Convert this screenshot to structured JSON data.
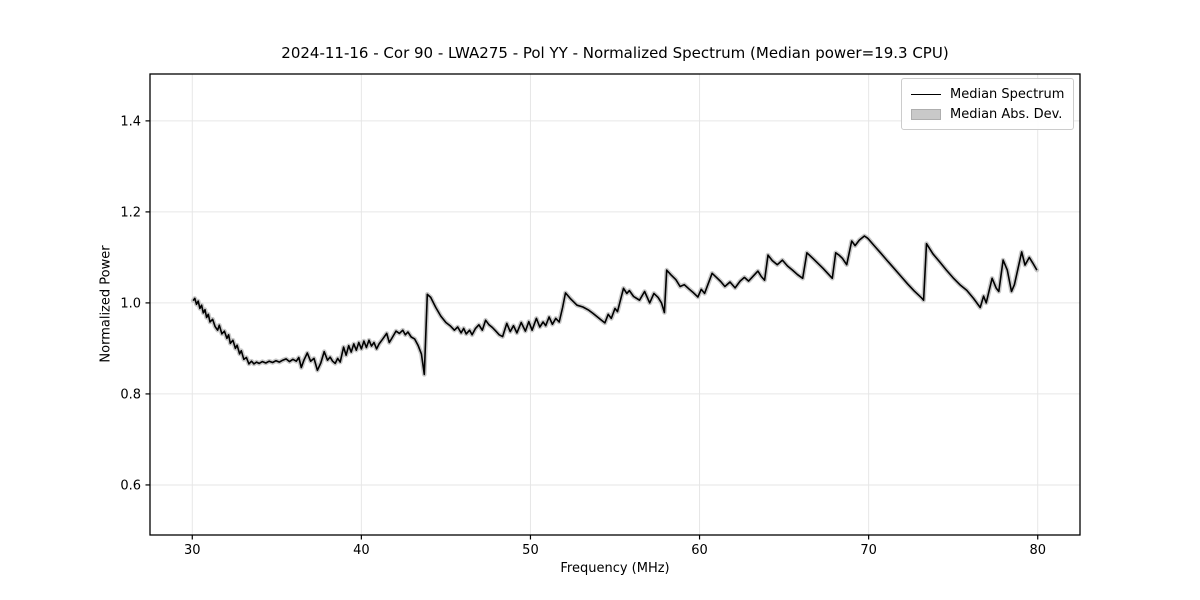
{
  "chart_data": {
    "type": "line",
    "title": "2024-11-16 - Cor 90 - LWA275 - Pol YY - Normalized Spectrum (Median power=19.3 CPU)",
    "xlabel": "Frequency (MHz)",
    "ylabel": "Normalized Power",
    "xlim": [
      27.5,
      82.5
    ],
    "ylim": [
      0.49,
      1.503
    ],
    "xticks": [
      30,
      40,
      50,
      60,
      70,
      80
    ],
    "xticklabels": [
      "30",
      "40",
      "50",
      "60",
      "70",
      "80"
    ],
    "yticks": [
      0.6,
      0.8,
      1.0,
      1.2,
      1.4
    ],
    "yticklabels": [
      "0.6",
      "0.8",
      "1.0",
      "1.2",
      "1.4"
    ],
    "grid": true,
    "legend": {
      "position": "upper right",
      "entries": [
        {
          "label": "Median Spectrum",
          "type": "line",
          "color": "#000000"
        },
        {
          "label": "Median Abs. Dev.",
          "type": "patch",
          "color": "#c9c9c9"
        }
      ]
    },
    "colors": {
      "line": "#000000",
      "band": "#c9c9c9",
      "grid": "#e6e6e6",
      "axes": "#000000",
      "background": "#ffffff"
    },
    "series": [
      {
        "name": "Median Spectrum",
        "type": "line",
        "color": "#000000",
        "points": [
          [
            30.05,
            1.005
          ],
          [
            30.15,
            1.01
          ],
          [
            30.25,
            0.997
          ],
          [
            30.35,
            1.004
          ],
          [
            30.45,
            0.988
          ],
          [
            30.55,
            0.995
          ],
          [
            30.65,
            0.978
          ],
          [
            30.75,
            0.985
          ],
          [
            30.85,
            0.968
          ],
          [
            30.95,
            0.975
          ],
          [
            31.05,
            0.958
          ],
          [
            31.2,
            0.964
          ],
          [
            31.35,
            0.948
          ],
          [
            31.5,
            0.94
          ],
          [
            31.6,
            0.951
          ],
          [
            31.75,
            0.932
          ],
          [
            31.9,
            0.938
          ],
          [
            32.05,
            0.922
          ],
          [
            32.15,
            0.93
          ],
          [
            32.25,
            0.911
          ],
          [
            32.4,
            0.918
          ],
          [
            32.55,
            0.9
          ],
          [
            32.65,
            0.907
          ],
          [
            32.8,
            0.888
          ],
          [
            32.9,
            0.895
          ],
          [
            33.05,
            0.876
          ],
          [
            33.2,
            0.88
          ],
          [
            33.35,
            0.866
          ],
          [
            33.5,
            0.872
          ],
          [
            33.65,
            0.866
          ],
          [
            33.8,
            0.87
          ],
          [
            33.95,
            0.867
          ],
          [
            34.15,
            0.871
          ],
          [
            34.35,
            0.868
          ],
          [
            34.55,
            0.872
          ],
          [
            34.75,
            0.869
          ],
          [
            34.95,
            0.873
          ],
          [
            35.15,
            0.87
          ],
          [
            35.35,
            0.874
          ],
          [
            35.55,
            0.877
          ],
          [
            35.75,
            0.871
          ],
          [
            35.95,
            0.876
          ],
          [
            36.15,
            0.872
          ],
          [
            36.3,
            0.88
          ],
          [
            36.45,
            0.858
          ],
          [
            36.6,
            0.874
          ],
          [
            36.8,
            0.89
          ],
          [
            37.0,
            0.872
          ],
          [
            37.2,
            0.878
          ],
          [
            37.4,
            0.852
          ],
          [
            37.6,
            0.868
          ],
          [
            37.8,
            0.893
          ],
          [
            38.0,
            0.874
          ],
          [
            38.15,
            0.881
          ],
          [
            38.3,
            0.872
          ],
          [
            38.45,
            0.867
          ],
          [
            38.6,
            0.878
          ],
          [
            38.75,
            0.87
          ],
          [
            38.95,
            0.903
          ],
          [
            39.1,
            0.885
          ],
          [
            39.25,
            0.906
          ],
          [
            39.4,
            0.892
          ],
          [
            39.55,
            0.91
          ],
          [
            39.7,
            0.896
          ],
          [
            39.85,
            0.913
          ],
          [
            40.0,
            0.899
          ],
          [
            40.15,
            0.916
          ],
          [
            40.3,
            0.902
          ],
          [
            40.45,
            0.918
          ],
          [
            40.6,
            0.905
          ],
          [
            40.75,
            0.913
          ],
          [
            40.9,
            0.899
          ],
          [
            41.05,
            0.91
          ],
          [
            41.25,
            0.92
          ],
          [
            41.5,
            0.933
          ],
          [
            41.65,
            0.913
          ],
          [
            41.85,
            0.925
          ],
          [
            42.05,
            0.938
          ],
          [
            42.25,
            0.933
          ],
          [
            42.45,
            0.94
          ],
          [
            42.6,
            0.93
          ],
          [
            42.75,
            0.936
          ],
          [
            42.95,
            0.925
          ],
          [
            43.15,
            0.921
          ],
          [
            43.35,
            0.907
          ],
          [
            43.55,
            0.888
          ],
          [
            43.72,
            0.843
          ],
          [
            43.9,
            1.019
          ],
          [
            44.1,
            1.012
          ],
          [
            44.4,
            0.99
          ],
          [
            44.7,
            0.971
          ],
          [
            45.0,
            0.957
          ],
          [
            45.25,
            0.95
          ],
          [
            45.5,
            0.94
          ],
          [
            45.7,
            0.947
          ],
          [
            45.9,
            0.934
          ],
          [
            46.05,
            0.944
          ],
          [
            46.2,
            0.932
          ],
          [
            46.4,
            0.94
          ],
          [
            46.55,
            0.93
          ],
          [
            46.75,
            0.944
          ],
          [
            46.95,
            0.952
          ],
          [
            47.15,
            0.94
          ],
          [
            47.35,
            0.962
          ],
          [
            47.55,
            0.952
          ],
          [
            47.75,
            0.946
          ],
          [
            47.95,
            0.938
          ],
          [
            48.15,
            0.93
          ],
          [
            48.35,
            0.926
          ],
          [
            48.6,
            0.955
          ],
          [
            48.8,
            0.937
          ],
          [
            49.0,
            0.95
          ],
          [
            49.2,
            0.934
          ],
          [
            49.45,
            0.957
          ],
          [
            49.7,
            0.938
          ],
          [
            49.9,
            0.959
          ],
          [
            50.1,
            0.94
          ],
          [
            50.35,
            0.966
          ],
          [
            50.55,
            0.947
          ],
          [
            50.75,
            0.958
          ],
          [
            50.9,
            0.95
          ],
          [
            51.1,
            0.969
          ],
          [
            51.3,
            0.953
          ],
          [
            51.5,
            0.966
          ],
          [
            51.7,
            0.958
          ],
          [
            51.9,
            0.99
          ],
          [
            52.07,
            1.022
          ],
          [
            52.35,
            1.01
          ],
          [
            52.75,
            0.995
          ],
          [
            53.1,
            0.991
          ],
          [
            53.45,
            0.984
          ],
          [
            53.7,
            0.977
          ],
          [
            54.0,
            0.968
          ],
          [
            54.2,
            0.962
          ],
          [
            54.4,
            0.956
          ],
          [
            54.6,
            0.975
          ],
          [
            54.78,
            0.966
          ],
          [
            55.0,
            0.988
          ],
          [
            55.15,
            0.981
          ],
          [
            55.5,
            1.032
          ],
          [
            55.7,
            1.021
          ],
          [
            55.85,
            1.027
          ],
          [
            56.1,
            1.014
          ],
          [
            56.45,
            1.006
          ],
          [
            56.75,
            1.025
          ],
          [
            57.05,
            1.0
          ],
          [
            57.3,
            1.021
          ],
          [
            57.55,
            1.012
          ],
          [
            57.75,
            1.0
          ],
          [
            57.92,
            0.979
          ],
          [
            58.06,
            1.072
          ],
          [
            58.3,
            1.062
          ],
          [
            58.6,
            1.051
          ],
          [
            58.85,
            1.036
          ],
          [
            59.1,
            1.04
          ],
          [
            59.4,
            1.03
          ],
          [
            59.65,
            1.022
          ],
          [
            59.9,
            1.013
          ],
          [
            60.1,
            1.03
          ],
          [
            60.3,
            1.021
          ],
          [
            60.74,
            1.065
          ],
          [
            61.0,
            1.056
          ],
          [
            61.25,
            1.047
          ],
          [
            61.5,
            1.036
          ],
          [
            61.8,
            1.046
          ],
          [
            62.1,
            1.033
          ],
          [
            62.4,
            1.048
          ],
          [
            62.65,
            1.056
          ],
          [
            62.9,
            1.048
          ],
          [
            63.2,
            1.06
          ],
          [
            63.45,
            1.07
          ],
          [
            63.65,
            1.058
          ],
          [
            63.85,
            1.05
          ],
          [
            64.05,
            1.105
          ],
          [
            64.3,
            1.093
          ],
          [
            64.6,
            1.084
          ],
          [
            64.9,
            1.094
          ],
          [
            65.2,
            1.081
          ],
          [
            65.5,
            1.072
          ],
          [
            65.8,
            1.062
          ],
          [
            66.1,
            1.054
          ],
          [
            66.35,
            1.11
          ],
          [
            66.7,
            1.098
          ],
          [
            67.0,
            1.087
          ],
          [
            67.3,
            1.076
          ],
          [
            67.6,
            1.064
          ],
          [
            67.85,
            1.054
          ],
          [
            68.05,
            1.11
          ],
          [
            68.25,
            1.105
          ],
          [
            68.45,
            1.098
          ],
          [
            68.7,
            1.084
          ],
          [
            69.0,
            1.136
          ],
          [
            69.2,
            1.126
          ],
          [
            69.45,
            1.138
          ],
          [
            69.75,
            1.147
          ],
          [
            69.95,
            1.142
          ],
          [
            70.3,
            1.127
          ],
          [
            70.7,
            1.11
          ],
          [
            71.1,
            1.093
          ],
          [
            71.5,
            1.076
          ],
          [
            71.9,
            1.059
          ],
          [
            72.3,
            1.042
          ],
          [
            72.7,
            1.026
          ],
          [
            73.1,
            1.012
          ],
          [
            73.25,
            1.006
          ],
          [
            73.42,
            1.13
          ],
          [
            73.8,
            1.108
          ],
          [
            74.2,
            1.09
          ],
          [
            74.6,
            1.072
          ],
          [
            75.0,
            1.055
          ],
          [
            75.4,
            1.04
          ],
          [
            75.8,
            1.028
          ],
          [
            76.2,
            1.01
          ],
          [
            76.6,
            0.99
          ],
          [
            76.8,
            1.015
          ],
          [
            76.95,
            1.0
          ],
          [
            77.3,
            1.054
          ],
          [
            77.55,
            1.032
          ],
          [
            77.7,
            1.025
          ],
          [
            77.95,
            1.094
          ],
          [
            78.2,
            1.072
          ],
          [
            78.45,
            1.025
          ],
          [
            78.62,
            1.04
          ],
          [
            79.05,
            1.112
          ],
          [
            79.25,
            1.083
          ],
          [
            79.5,
            1.1
          ],
          [
            79.7,
            1.088
          ],
          [
            79.95,
            1.072
          ]
        ]
      },
      {
        "name": "Median Abs. Dev.",
        "type": "band",
        "color": "#c9c9c9",
        "follows": "Median Spectrum",
        "halfwidth": 0.004
      }
    ]
  }
}
